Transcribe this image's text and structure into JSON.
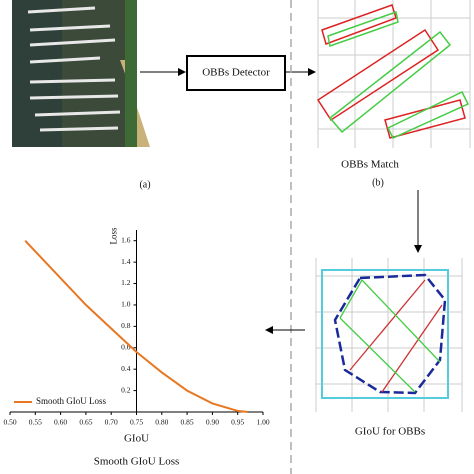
{
  "figure": {
    "panel_a_caption": "(a)",
    "detector_label": "OBBs Detector",
    "panel_b_title": "OBBs Match",
    "panel_b_caption": "(b)",
    "giou_title": "GIoU for OBBs"
  },
  "chart_data": {
    "type": "line",
    "title": "Smooth GIoU Loss",
    "xlabel": "GIoU",
    "ylabel": "Loss",
    "x": [
      0.53,
      0.55,
      0.6,
      0.65,
      0.7,
      0.75,
      0.8,
      0.85,
      0.9,
      0.95,
      0.97
    ],
    "series": [
      {
        "name": "Smooth GIoU Loss",
        "color": "#e87722",
        "values": [
          1.6,
          1.5,
          1.25,
          1.0,
          0.78,
          0.56,
          0.37,
          0.2,
          0.08,
          0.01,
          0.0
        ]
      }
    ],
    "xlim": [
      0.5,
      1.0
    ],
    "ylim": [
      0,
      1.7
    ],
    "yaxis_at": 0.75,
    "xticks": [
      {
        "value": 0.5,
        "label": "0.50"
      },
      {
        "value": 0.55,
        "label": "0.55"
      },
      {
        "value": 0.6,
        "label": "0.60"
      },
      {
        "value": 0.65,
        "label": "0.65"
      },
      {
        "value": 0.7,
        "label": "0.70"
      },
      {
        "value": 0.75,
        "label": "0.75"
      },
      {
        "value": 0.8,
        "label": "0.80"
      },
      {
        "value": 0.85,
        "label": "0.85"
      },
      {
        "value": 0.9,
        "label": "0.90"
      },
      {
        "value": 0.95,
        "label": "0.95"
      },
      {
        "value": 1.0,
        "label": "1.00"
      }
    ],
    "yticks": [
      0.2,
      0.4,
      0.6,
      0.8,
      {
        "value": 1.0,
        "label": "1.0"
      },
      1.2,
      1.4,
      1.6
    ],
    "legend": "lower left"
  }
}
